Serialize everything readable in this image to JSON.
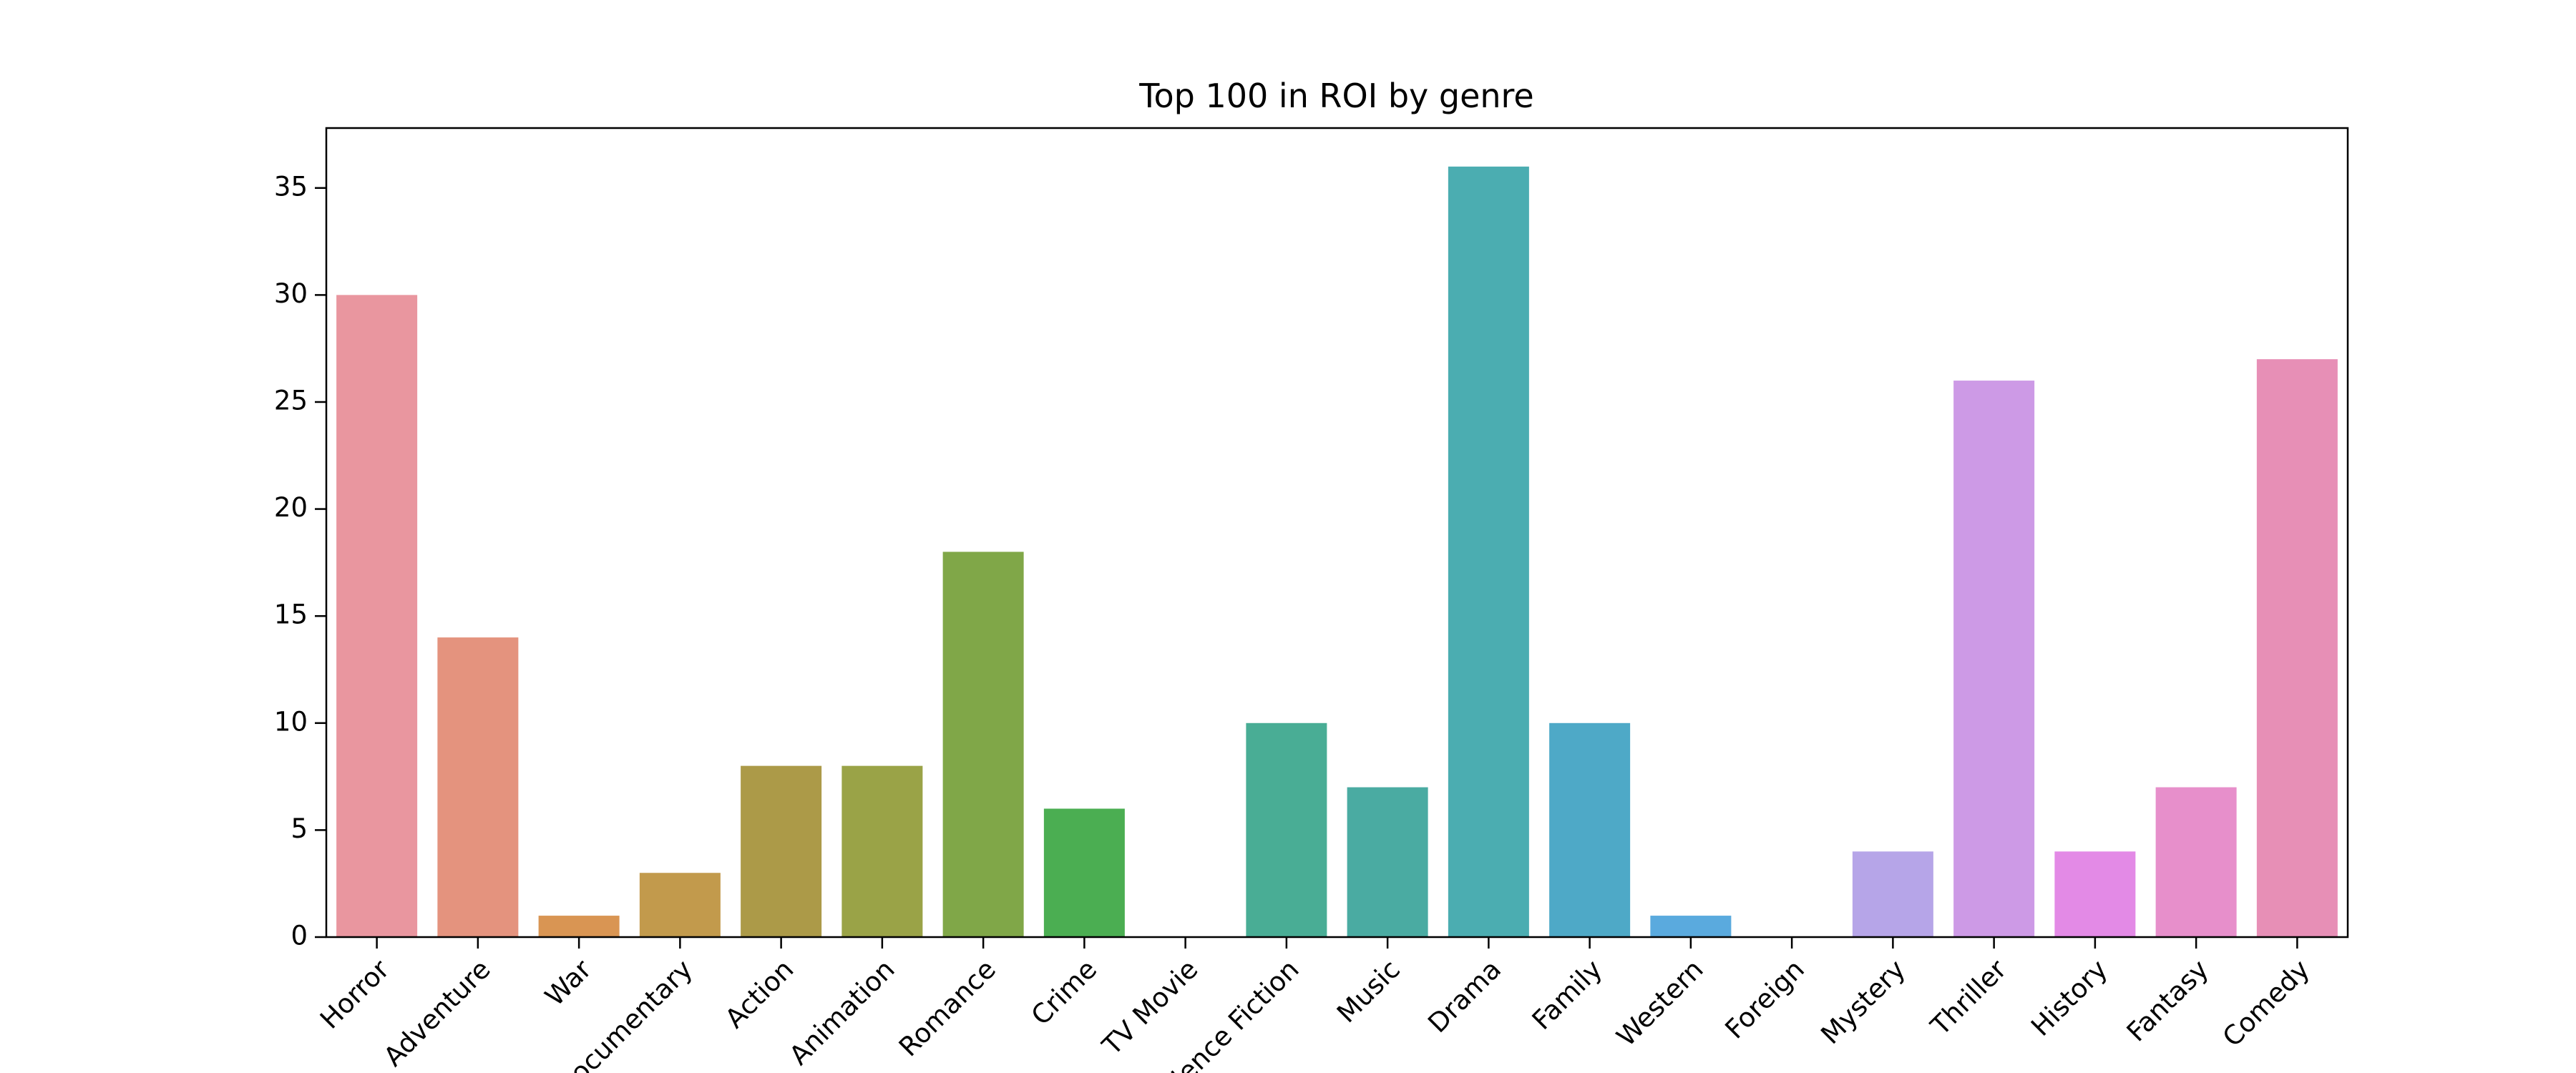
{
  "chart_data": {
    "type": "bar",
    "title": "Top 100 in ROI by genre",
    "categories": [
      "Horror",
      "Adventure",
      "War",
      "Documentary",
      "Action",
      "Animation",
      "Romance",
      "Crime",
      "TV Movie",
      "Science Fiction",
      "Music",
      "Drama",
      "Family",
      "Western",
      "Foreign",
      "Mystery",
      "Thriller",
      "History",
      "Fantasy",
      "Comedy"
    ],
    "values": [
      30,
      14,
      1,
      3,
      8,
      8,
      18,
      6,
      0,
      10,
      7,
      36,
      10,
      1,
      0,
      4,
      26,
      4,
      7,
      27
    ],
    "colors": [
      "#e9969f",
      "#e4937e",
      "#d99553",
      "#c29a4c",
      "#ac9a48",
      "#9aa347",
      "#80a748",
      "#4bae52",
      "#4aac86",
      "#49ad95",
      "#4aaba2",
      "#4badb1",
      "#4ea9c7",
      "#5aaade",
      "#9aa2e2",
      "#b6a5e8",
      "#cd9ae6",
      "#e38ae6",
      "#e78fcb",
      "#e78fb6"
    ],
    "ylim": [
      0,
      37.8
    ],
    "yticks": [
      0,
      5,
      10,
      15,
      20,
      25,
      30,
      35
    ]
  }
}
